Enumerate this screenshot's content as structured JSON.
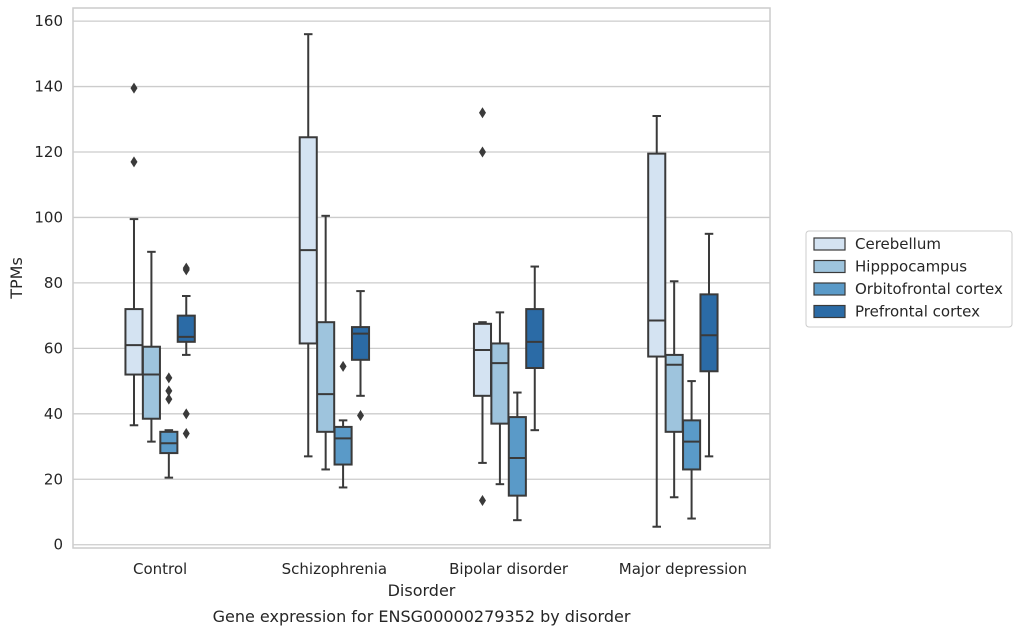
{
  "chart_data": {
    "type": "box",
    "title": "",
    "caption": "Gene expression for ENSG00000279352 by disorder",
    "xlabel": "Disorder",
    "ylabel": "TPMs",
    "ylim": [
      -1,
      164
    ],
    "yticks": [
      0,
      20,
      40,
      60,
      80,
      100,
      120,
      140,
      160
    ],
    "grid": "horizontal",
    "legend_position": "right",
    "categories": [
      "Control",
      "Schizophrenia",
      "Bipolar disorder",
      "Major depression"
    ],
    "series": [
      {
        "name": "Cerebellum",
        "color": "#d4e3f2",
        "boxes": [
          {
            "whislo": 36.5,
            "q1": 52.0,
            "med": 61.0,
            "q3": 72.0,
            "whishi": 99.5,
            "fliers": [
              117.0,
              139.5
            ]
          },
          {
            "whislo": 27.0,
            "q1": 61.5,
            "med": 90.0,
            "q3": 124.5,
            "whishi": 156.0,
            "fliers": []
          },
          {
            "whislo": 25.0,
            "q1": 45.5,
            "med": 59.5,
            "q3": 67.5,
            "whishi": 68.0,
            "fliers": [
              13.5,
              120.0,
              132.0
            ]
          },
          {
            "whislo": 5.5,
            "q1": 57.5,
            "med": 68.5,
            "q3": 119.5,
            "whishi": 131.0,
            "fliers": []
          }
        ]
      },
      {
        "name": "Hipppocampus",
        "color": "#9ec4dd",
        "boxes": [
          {
            "whislo": 31.5,
            "q1": 38.5,
            "med": 52.0,
            "q3": 60.5,
            "whishi": 89.5,
            "fliers": []
          },
          {
            "whislo": 23.0,
            "q1": 34.5,
            "med": 46.0,
            "q3": 68.0,
            "whishi": 100.5,
            "fliers": []
          },
          {
            "whislo": 18.5,
            "q1": 37.0,
            "med": 55.5,
            "q3": 61.5,
            "whishi": 71.0,
            "fliers": []
          },
          {
            "whislo": 14.5,
            "q1": 34.5,
            "med": 55.0,
            "q3": 58.0,
            "whishi": 80.5,
            "fliers": []
          }
        ]
      },
      {
        "name": "Orbitofrontal cortex",
        "color": "#5a9ac8",
        "boxes": [
          {
            "whislo": 20.5,
            "q1": 28.0,
            "med": 31.0,
            "q3": 34.5,
            "whishi": 35.0,
            "fliers": [
              44.5,
              47.0,
              51.0
            ]
          },
          {
            "whislo": 17.5,
            "q1": 24.5,
            "med": 32.5,
            "q3": 36.0,
            "whishi": 38.0,
            "fliers": [
              54.5
            ]
          },
          {
            "whislo": 7.5,
            "q1": 15.0,
            "med": 26.5,
            "q3": 39.0,
            "whishi": 46.5,
            "fliers": []
          },
          {
            "whislo": 8.0,
            "q1": 23.0,
            "med": 31.5,
            "q3": 38.0,
            "whishi": 50.0,
            "fliers": []
          }
        ]
      },
      {
        "name": "Prefrontal cortex",
        "color": "#2b6ba6",
        "boxes": [
          {
            "whislo": 58.0,
            "q1": 62.0,
            "med": 63.5,
            "q3": 70.0,
            "whishi": 76.0,
            "fliers": [
              34.0,
              40.0,
              84.0,
              84.5
            ]
          },
          {
            "whislo": 45.5,
            "q1": 56.5,
            "med": 64.5,
            "q3": 66.5,
            "whishi": 77.5,
            "fliers": [
              39.5
            ]
          },
          {
            "whislo": 35.0,
            "q1": 54.0,
            "med": 62.0,
            "q3": 72.0,
            "whishi": 85.0,
            "fliers": []
          },
          {
            "whislo": 27.0,
            "q1": 53.0,
            "med": 64.0,
            "q3": 76.5,
            "whishi": 95.0,
            "fliers": []
          }
        ]
      }
    ]
  }
}
